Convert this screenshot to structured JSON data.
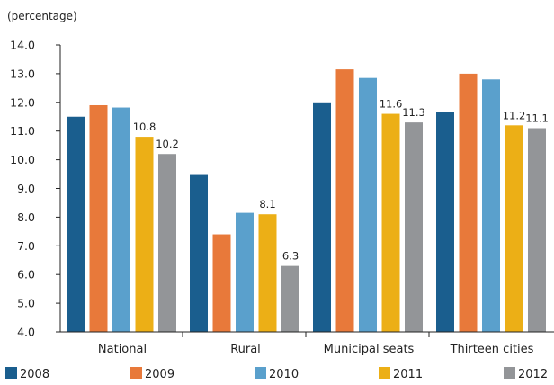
{
  "chart_data": {
    "type": "bar",
    "ylabel": "(percentage)",
    "ylim": [
      4.0,
      14.0
    ],
    "yticks": [
      "4.0",
      "5.0",
      "6.0",
      "7.0",
      "8.0",
      "9.0",
      "10.0",
      "11.0",
      "12.0",
      "13.0",
      "14.0"
    ],
    "categories": [
      "National",
      "Rural",
      "Municipal seats",
      "Thirteen cities"
    ],
    "legend_position": "bottom",
    "grid": false,
    "series": [
      {
        "name": "2008",
        "color": "#1a5e8e",
        "values": [
          11.5,
          9.5,
          12.0,
          11.65
        ],
        "labels": [
          "",
          "",
          "",
          ""
        ]
      },
      {
        "name": "2009",
        "color": "#e8793a",
        "values": [
          11.9,
          7.4,
          13.15,
          13.0
        ],
        "labels": [
          "",
          "",
          "",
          ""
        ]
      },
      {
        "name": "2010",
        "color": "#5aa0cc",
        "values": [
          11.82,
          8.15,
          12.85,
          12.8
        ],
        "labels": [
          "",
          "",
          "",
          ""
        ]
      },
      {
        "name": "2011",
        "color": "#ecaf16",
        "values": [
          10.8,
          8.1,
          11.6,
          11.2
        ],
        "labels": [
          "10.8",
          "8.1",
          "11.6",
          "11.2"
        ]
      },
      {
        "name": "2012",
        "color": "#939598",
        "values": [
          10.2,
          6.3,
          11.3,
          11.1
        ],
        "labels": [
          "10.2",
          "6.3",
          "11.3",
          "11.1"
        ]
      }
    ]
  }
}
